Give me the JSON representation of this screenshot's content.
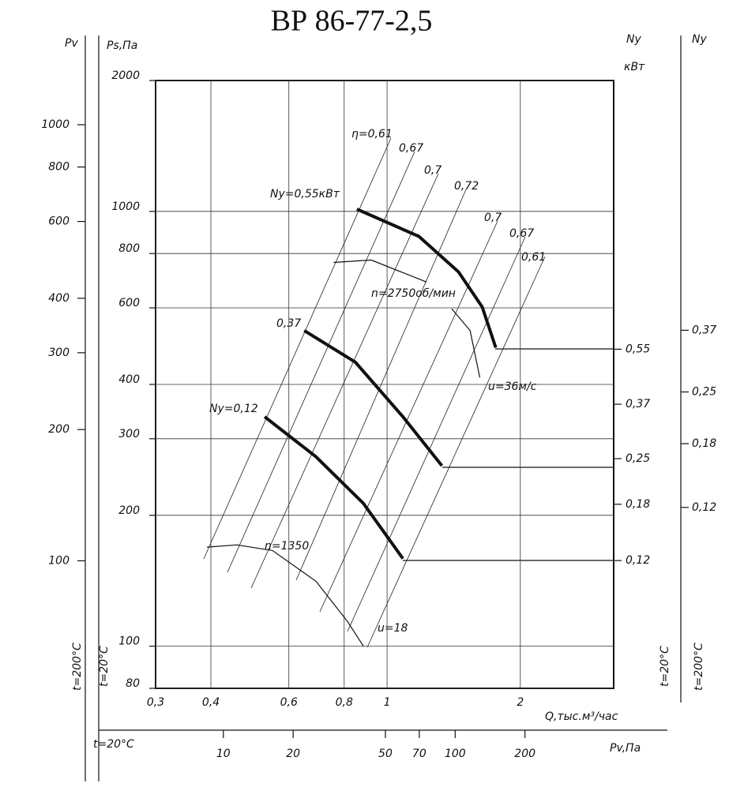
{
  "chart_data": {
    "type": "line",
    "title": "ВР 86-77-2,5",
    "log_scale": true,
    "grid": true,
    "x_label": "Q,тыс.м³/час",
    "y_label": "Ps,Па",
    "xlim": [
      0.3,
      3.25
    ],
    "xticks": [
      {
        "value": 0.3,
        "label": "0,3"
      },
      {
        "value": 0.4,
        "label": "0,4"
      },
      {
        "value": 0.6,
        "label": "0,6"
      },
      {
        "value": 0.8,
        "label": "0,8"
      },
      1,
      2
    ],
    "ylim": [
      80,
      2000
    ],
    "yticks": [
      80,
      100,
      200,
      300,
      400,
      600,
      800,
      1000,
      2000
    ],
    "series": [
      {
        "name": "Nу=0,55кВт",
        "color": "#111111",
        "x": [
          0.855,
          1.18,
          1.45,
          1.64,
          1.76
        ],
        "values": [
          1012,
          876,
          726,
          603,
          486
        ]
      },
      {
        "name": "0,37",
        "color": "#111111",
        "x": [
          0.65,
          0.848,
          1.086,
          1.33
        ],
        "values": [
          532,
          450,
          337,
          260
        ]
      },
      {
        "name": "Nу=0,12",
        "color": "#111111",
        "x": [
          0.529,
          0.69,
          0.884,
          1.086
        ],
        "values": [
          337,
          273,
          213,
          159
        ]
      }
    ],
    "speed_curves": [
      {
        "name": "n=2750об/мин",
        "color": "#111111",
        "x": [
          0.757,
          0.921,
          1.228
        ],
        "values": [
          763,
          773,
          688
        ]
      },
      {
        "name": "u=36м/с",
        "color": "#111111",
        "x": [
          1.4,
          1.54,
          1.62
        ],
        "values": [
          597,
          532,
          415
        ]
      },
      {
        "name": "n=1350",
        "color": "#111111",
        "x": [
          0.392,
          0.458,
          0.551,
          0.691,
          0.814,
          0.884
        ],
        "values": [
          169,
          171,
          166,
          141,
          114,
          100
        ]
      }
    ],
    "annotations": {
      "u18": "u=18"
    },
    "eta_labels": [
      "η=0,61",
      "0,67",
      "0,7",
      "0,72",
      "0,7",
      "0,67",
      "0,61"
    ],
    "pv_axis": {
      "label": "Pv",
      "lim": [
        51,
        1263
      ],
      "ticks": [
        100,
        200,
        300,
        400,
        600,
        800,
        1000
      ]
    },
    "pv_bottom_axis": {
      "label": "Pv,Па",
      "lim": [
        2.9,
        823
      ],
      "ticks": [
        10,
        20,
        50,
        70,
        100,
        200
      ]
    },
    "n_axis": {
      "label": "Nу",
      "unit": "кВт",
      "lim": [
        0.0478,
        3.81
      ],
      "ticks": [
        {
          "value": 0.12,
          "label": "0,12"
        },
        {
          "value": 0.18,
          "label": "0,18"
        },
        {
          "value": 0.25,
          "label": "0,25"
        },
        {
          "value": 0.37,
          "label": "0,37"
        },
        {
          "value": 0.55,
          "label": "0,55"
        }
      ]
    },
    "n200_axis": {
      "label": "Nу",
      "lim": [
        0.038,
        1.81
      ],
      "ticks": [
        {
          "value": 0.12,
          "label": "0,12"
        },
        {
          "value": 0.18,
          "label": "0,18"
        },
        {
          "value": 0.25,
          "label": "0,25"
        },
        {
          "value": 0.37,
          "label": "0,37"
        }
      ]
    },
    "temp_labels": {
      "t20": "t=20°С",
      "t200": "t=200°С"
    }
  }
}
